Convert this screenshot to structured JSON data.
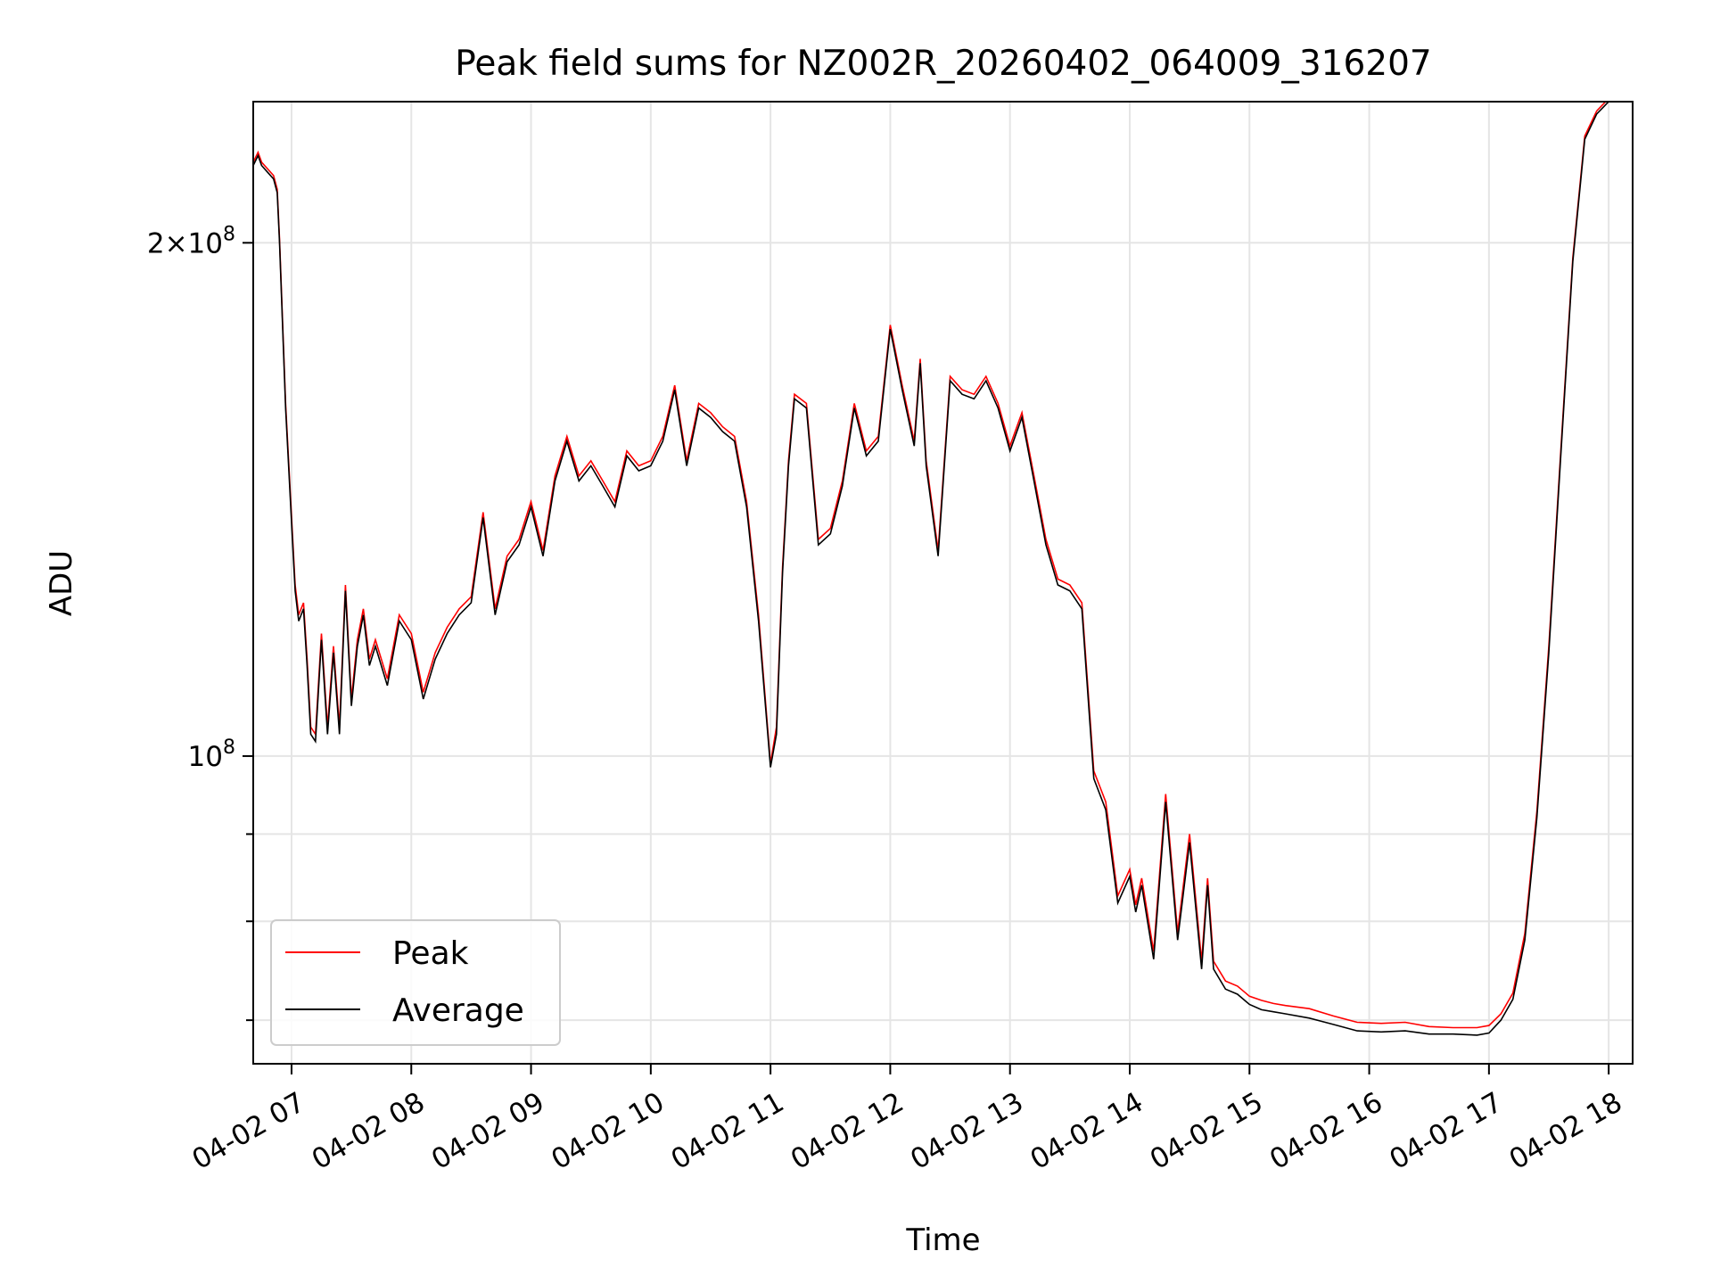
{
  "chart_data": {
    "type": "line",
    "title": "Peak field sums for NZ002R_20260402_064009_316207",
    "xlabel": "Time",
    "ylabel": "ADU",
    "y_scale": "log",
    "ylim": [
      66000000,
      242000000
    ],
    "xlim_hours": [
      6.68,
      18.2
    ],
    "grid": true,
    "legend_position": "lower-left",
    "x_ticks": [
      {
        "label": "04-02 07",
        "hour": 7
      },
      {
        "label": "04-02 08",
        "hour": 8
      },
      {
        "label": "04-02 09",
        "hour": 9
      },
      {
        "label": "04-02 10",
        "hour": 10
      },
      {
        "label": "04-02 11",
        "hour": 11
      },
      {
        "label": "04-02 12",
        "hour": 12
      },
      {
        "label": "04-02 13",
        "hour": 13
      },
      {
        "label": "04-02 14",
        "hour": 14
      },
      {
        "label": "04-02 15",
        "hour": 15
      },
      {
        "label": "04-02 16",
        "hour": 16
      },
      {
        "label": "04-02 17",
        "hour": 17
      },
      {
        "label": "04-02 18",
        "hour": 18
      }
    ],
    "y_ticks_major": [
      {
        "label_base": "2×10",
        "label_exp": "8",
        "value": 200000000
      },
      {
        "label_base": "10",
        "label_exp": "8",
        "value": 100000000
      }
    ],
    "y_ticks_minor": [
      70000000,
      80000000,
      90000000
    ],
    "series": [
      {
        "name": "Peak",
        "color": "#ff0000"
      },
      {
        "name": "Average",
        "color": "#000000"
      }
    ],
    "hours": [
      6.68,
      6.72,
      6.75,
      6.8,
      6.85,
      6.88,
      6.9,
      6.95,
      7.0,
      7.03,
      7.06,
      7.1,
      7.13,
      7.16,
      7.2,
      7.25,
      7.3,
      7.35,
      7.4,
      7.45,
      7.5,
      7.55,
      7.6,
      7.65,
      7.7,
      7.8,
      7.9,
      8.0,
      8.1,
      8.2,
      8.3,
      8.4,
      8.5,
      8.6,
      8.7,
      8.8,
      8.9,
      9.0,
      9.1,
      9.2,
      9.3,
      9.4,
      9.5,
      9.6,
      9.7,
      9.8,
      9.9,
      10.0,
      10.1,
      10.2,
      10.3,
      10.4,
      10.5,
      10.6,
      10.7,
      10.8,
      10.9,
      11.0,
      11.05,
      11.1,
      11.15,
      11.2,
      11.3,
      11.4,
      11.5,
      11.6,
      11.7,
      11.8,
      11.9,
      12.0,
      12.1,
      12.2,
      12.25,
      12.3,
      12.4,
      12.5,
      12.6,
      12.7,
      12.8,
      12.9,
      13.0,
      13.1,
      13.2,
      13.3,
      13.4,
      13.5,
      13.6,
      13.7,
      13.8,
      13.9,
      14.0,
      14.05,
      14.1,
      14.2,
      14.3,
      14.4,
      14.5,
      14.6,
      14.65,
      14.7,
      14.8,
      14.9,
      15.0,
      15.1,
      15.2,
      15.3,
      15.5,
      15.7,
      15.9,
      16.1,
      16.3,
      16.5,
      16.7,
      16.9,
      17.0,
      17.1,
      17.2,
      17.3,
      17.4,
      17.5,
      17.6,
      17.7,
      17.8,
      17.9,
      17.95,
      18.0,
      18.1,
      18.2
    ],
    "average": [
      222000000,
      225000000,
      222000000,
      220000000,
      218000000,
      214000000,
      200000000,
      160000000,
      137000000,
      125000000,
      120000000,
      122000000,
      113000000,
      103000000,
      102000000,
      117000000,
      103000000,
      115000000,
      103000000,
      125000000,
      107000000,
      116000000,
      121000000,
      113000000,
      116000000,
      110000000,
      120000000,
      117000000,
      108000000,
      114000000,
      118000000,
      121000000,
      123000000,
      138000000,
      121000000,
      130000000,
      133000000,
      140000000,
      131000000,
      145000000,
      153000000,
      145000000,
      148000000,
      144000000,
      140000000,
      150000000,
      147000000,
      148000000,
      153000000,
      164000000,
      148000000,
      160000000,
      158000000,
      155000000,
      153000000,
      140000000,
      120000000,
      98500000,
      103000000,
      128000000,
      148000000,
      162000000,
      160000000,
      133000000,
      135000000,
      144000000,
      160000000,
      150000000,
      153000000,
      178000000,
      164000000,
      152000000,
      170000000,
      148000000,
      131000000,
      166000000,
      163000000,
      162000000,
      166000000,
      160000000,
      151000000,
      158000000,
      145000000,
      133000000,
      126000000,
      125000000,
      122000000,
      97000000,
      93000000,
      82000000,
      85000000,
      81000000,
      84000000,
      76000000,
      94000000,
      78000000,
      89000000,
      75000000,
      84000000,
      75000000,
      73000000,
      72500000,
      71500000,
      71000000,
      70800000,
      70600000,
      70200000,
      69600000,
      69000000,
      68900000,
      69000000,
      68700000,
      68700000,
      68600000,
      68800000,
      70000000,
      72000000,
      78000000,
      92000000,
      115000000,
      150000000,
      195000000,
      230000000,
      238000000,
      240000000,
      242000000
    ],
    "peak": [
      223000000,
      226000000,
      223000000,
      221000000,
      219000000,
      215000000,
      201000000,
      161000000,
      138000000,
      126000000,
      121000000,
      123000000,
      114000000,
      104000000,
      103000000,
      118000000,
      104000000,
      116000000,
      104000000,
      126000000,
      108000000,
      117000000,
      122000000,
      114000000,
      117000000,
      111000000,
      121000000,
      118000000,
      109000000,
      115000000,
      119000000,
      122000000,
      124000000,
      139000000,
      122000000,
      131000000,
      134000000,
      141000000,
      132000000,
      146000000,
      154000000,
      146000000,
      149000000,
      145000000,
      141000000,
      151000000,
      148000000,
      149000000,
      154000000,
      165000000,
      149000000,
      161000000,
      159000000,
      156000000,
      154000000,
      141000000,
      121000000,
      99000000,
      104000000,
      129000000,
      149000000,
      163000000,
      161000000,
      134000000,
      136000000,
      145000000,
      161000000,
      151000000,
      154000000,
      179000000,
      165000000,
      153000000,
      171000000,
      149000000,
      132000000,
      167000000,
      164000000,
      163000000,
      167000000,
      161000000,
      152000000,
      159000000,
      146000000,
      134000000,
      127000000,
      126000000,
      123000000,
      98000000,
      94000000,
      82800000,
      85800000,
      81800000,
      84800000,
      76800000,
      95000000,
      78800000,
      90000000,
      75800000,
      84800000,
      75800000,
      73800000,
      73300000,
      72300000,
      71900000,
      71600000,
      71400000,
      71100000,
      70400000,
      69800000,
      69700000,
      69800000,
      69400000,
      69300000,
      69300000,
      69500000,
      70600000,
      72600000,
      78700000,
      92800000,
      116000000,
      151000000,
      196000000,
      231000000,
      239000000,
      241000000,
      243000000
    ]
  }
}
